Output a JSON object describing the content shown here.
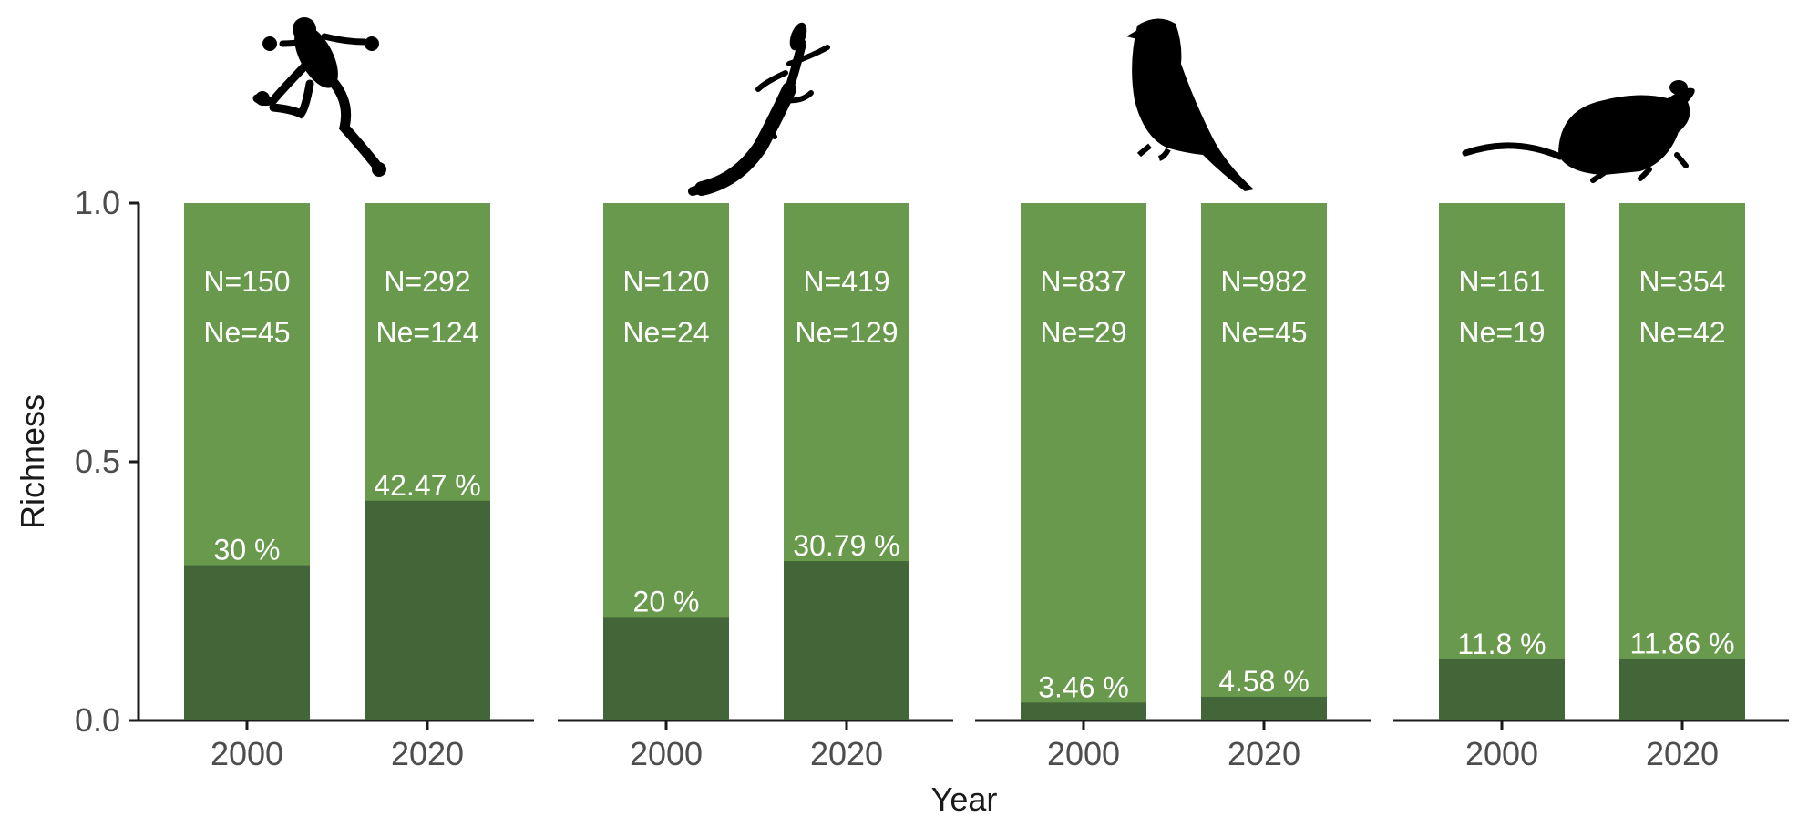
{
  "chart_data": {
    "type": "bar",
    "stacked": true,
    "xlabel": "Year",
    "ylabel": "Richness",
    "ylim": [
      0,
      1
    ],
    "yticks": [
      0.0,
      0.5,
      1.0
    ],
    "ytick_labels": [
      "0.0",
      "0.5",
      "1.0"
    ],
    "grid": false,
    "legend": "none",
    "colors": {
      "total": "#68994c",
      "endemic": "#436638"
    },
    "panels": [
      {
        "icon": "frog-silhouette-icon",
        "bars": [
          {
            "x": "2000",
            "value": 0.3,
            "label": "30 %",
            "N": "N=150",
            "Ne": "Ne=45"
          },
          {
            "x": "2020",
            "value": 0.4247,
            "label": "42.47 %",
            "N": "N=292",
            "Ne": "Ne=124"
          }
        ]
      },
      {
        "icon": "lizard-silhouette-icon",
        "bars": [
          {
            "x": "2000",
            "value": 0.2,
            "label": "20 %",
            "N": "N=120",
            "Ne": "Ne=24"
          },
          {
            "x": "2020",
            "value": 0.3079,
            "label": "30.79 %",
            "N": "N=419",
            "Ne": "Ne=129"
          }
        ]
      },
      {
        "icon": "bird-silhouette-icon",
        "bars": [
          {
            "x": "2000",
            "value": 0.0346,
            "label": "3.46 %",
            "N": "N=837",
            "Ne": "Ne=29"
          },
          {
            "x": "2020",
            "value": 0.0458,
            "label": "4.58 %",
            "N": "N=982",
            "Ne": "Ne=45"
          }
        ]
      },
      {
        "icon": "mouse-silhouette-icon",
        "bars": [
          {
            "x": "2000",
            "value": 0.118,
            "label": "11.8 %",
            "N": "N=161",
            "Ne": "Ne=19"
          },
          {
            "x": "2020",
            "value": 0.1186,
            "label": "11.86 %",
            "N": "N=354",
            "Ne": "Ne=42"
          }
        ]
      }
    ]
  }
}
